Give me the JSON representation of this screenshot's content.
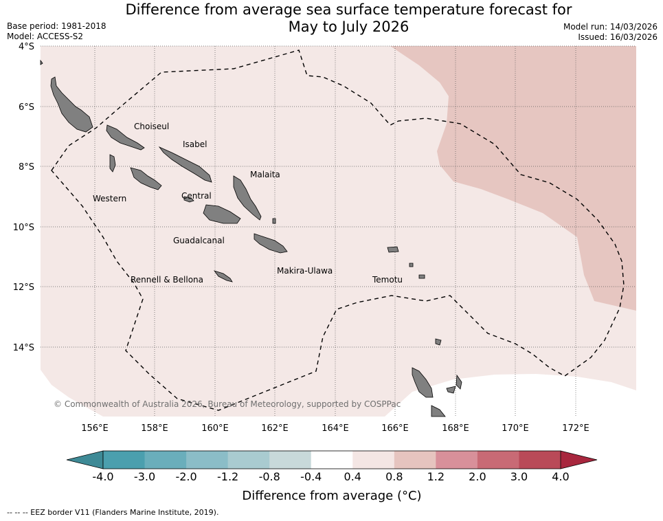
{
  "title_line1": "Difference from average sea surface temperature forecast for",
  "title_line2": "May to July 2026",
  "base_period": "Base period: 1981-2018",
  "model": "Model: ACCESS-S2",
  "model_run": "Model run: 14/03/2026",
  "issued": "Issued: 16/03/2026",
  "copyright": "© Commonwealth of Australia 2026, Bureau of Meteorology, supported by COSPPac",
  "footnote": "--  --  -- EEZ border V11 (Flanders Marine Institute, 2019).",
  "regions": [
    "Choiseul",
    "Isabel",
    "Malaita",
    "Western",
    "Central",
    "Guadalcanal",
    "Makira-Ulawa",
    "Rennell & Bellona",
    "Temotu"
  ],
  "lat_ticks": [
    "4°S",
    "6°S",
    "8°S",
    "10°S",
    "12°S",
    "14°S"
  ],
  "lon_ticks": [
    "156°E",
    "158°E",
    "160°E",
    "162°E",
    "164°E",
    "166°E",
    "168°E",
    "170°E",
    "172°E"
  ],
  "colorbar": {
    "title": "Difference from average (°C)",
    "tick_labels": [
      "-4.0",
      "-3.0",
      "-2.0",
      "-1.2",
      "-0.8",
      "-0.4",
      "0.4",
      "0.8",
      "1.2",
      "2.0",
      "3.0",
      "4.0"
    ],
    "colors": [
      "#4b9fae",
      "#6aaebb",
      "#8bbdc7",
      "#a9cbd0",
      "#c8d9da",
      "#ffffff",
      "#f4e6e4",
      "#e6c4bf",
      "#d8909a",
      "#c86a75",
      "#b94a58"
    ],
    "under_color": "#3e8a96",
    "over_color": "#a8273e"
  },
  "map_colors": {
    "anomaly_04_08": "#f4e8e6",
    "anomaly_08_12": "#e6c6c1",
    "land": "#808080"
  }
}
